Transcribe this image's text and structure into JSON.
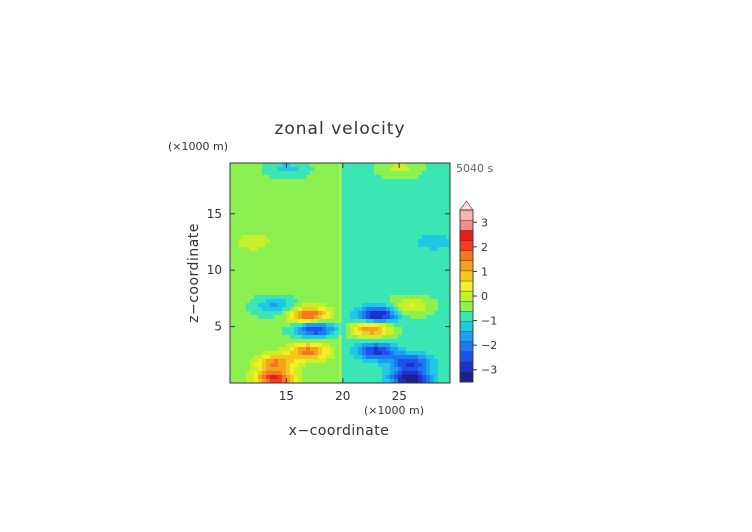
{
  "chart_data": {
    "type": "heatmap",
    "title": "zonal velocity",
    "xlabel": "x−coordinate",
    "ylabel": "z−coordinate",
    "x_unit": "(×1000 m)",
    "y_unit": "(×1000 m)",
    "time_label": "5040 s",
    "xlim": [
      10,
      29.5
    ],
    "ylim": [
      0,
      19.5
    ],
    "x_ticks": [
      15,
      20,
      25
    ],
    "y_ticks": [
      5,
      10,
      15
    ],
    "colorbar": {
      "min": -3.5,
      "max": 3.5,
      "step": 0.5,
      "ticks": [
        3,
        2,
        1,
        0,
        -1,
        -2,
        -3
      ],
      "extend": "max",
      "colors": [
        "#1e1e8c",
        "#1e32c8",
        "#1e50f0",
        "#1e78f0",
        "#1ea0f0",
        "#1ec8e6",
        "#3ce6b4",
        "#8cf050",
        "#c8f028",
        "#f0f028",
        "#f5c81e",
        "#f5a01e",
        "#f5781e",
        "#f53c1e",
        "#e61e1e",
        "#f08c8c",
        "#f5b4b4"
      ]
    },
    "features": [
      {
        "x": 14.0,
        "z": 0.4,
        "value": 3.5
      },
      {
        "x": 26.0,
        "z": 0.4,
        "value": -3.5
      },
      {
        "x": 14.0,
        "z": 1.8,
        "value": 2.4
      },
      {
        "x": 26.0,
        "z": 1.8,
        "value": -2.4
      },
      {
        "x": 17.0,
        "z": 2.8,
        "value": 2.6
      },
      {
        "x": 23.0,
        "z": 2.8,
        "value": -2.6
      },
      {
        "x": 17.5,
        "z": 4.8,
        "value": -2.8
      },
      {
        "x": 22.5,
        "z": 4.8,
        "value": 2.8
      },
      {
        "x": 17.0,
        "z": 6.0,
        "value": 3.2
      },
      {
        "x": 23.0,
        "z": 6.0,
        "value": -3.2
      },
      {
        "x": 14.0,
        "z": 6.8,
        "value": -1.2
      },
      {
        "x": 26.0,
        "z": 6.8,
        "value": 1.2
      },
      {
        "x": 12.0,
        "z": 12.5,
        "value": 0.8
      },
      {
        "x": 28.0,
        "z": 12.5,
        "value": -0.8
      },
      {
        "x": 19.0,
        "z": 13.5,
        "value": 0.2
      },
      {
        "x": 21.0,
        "z": 13.5,
        "value": -0.2
      },
      {
        "x": 15.0,
        "z": 19.0,
        "value": -0.8
      },
      {
        "x": 25.0,
        "z": 19.0,
        "value": 0.8
      }
    ]
  }
}
